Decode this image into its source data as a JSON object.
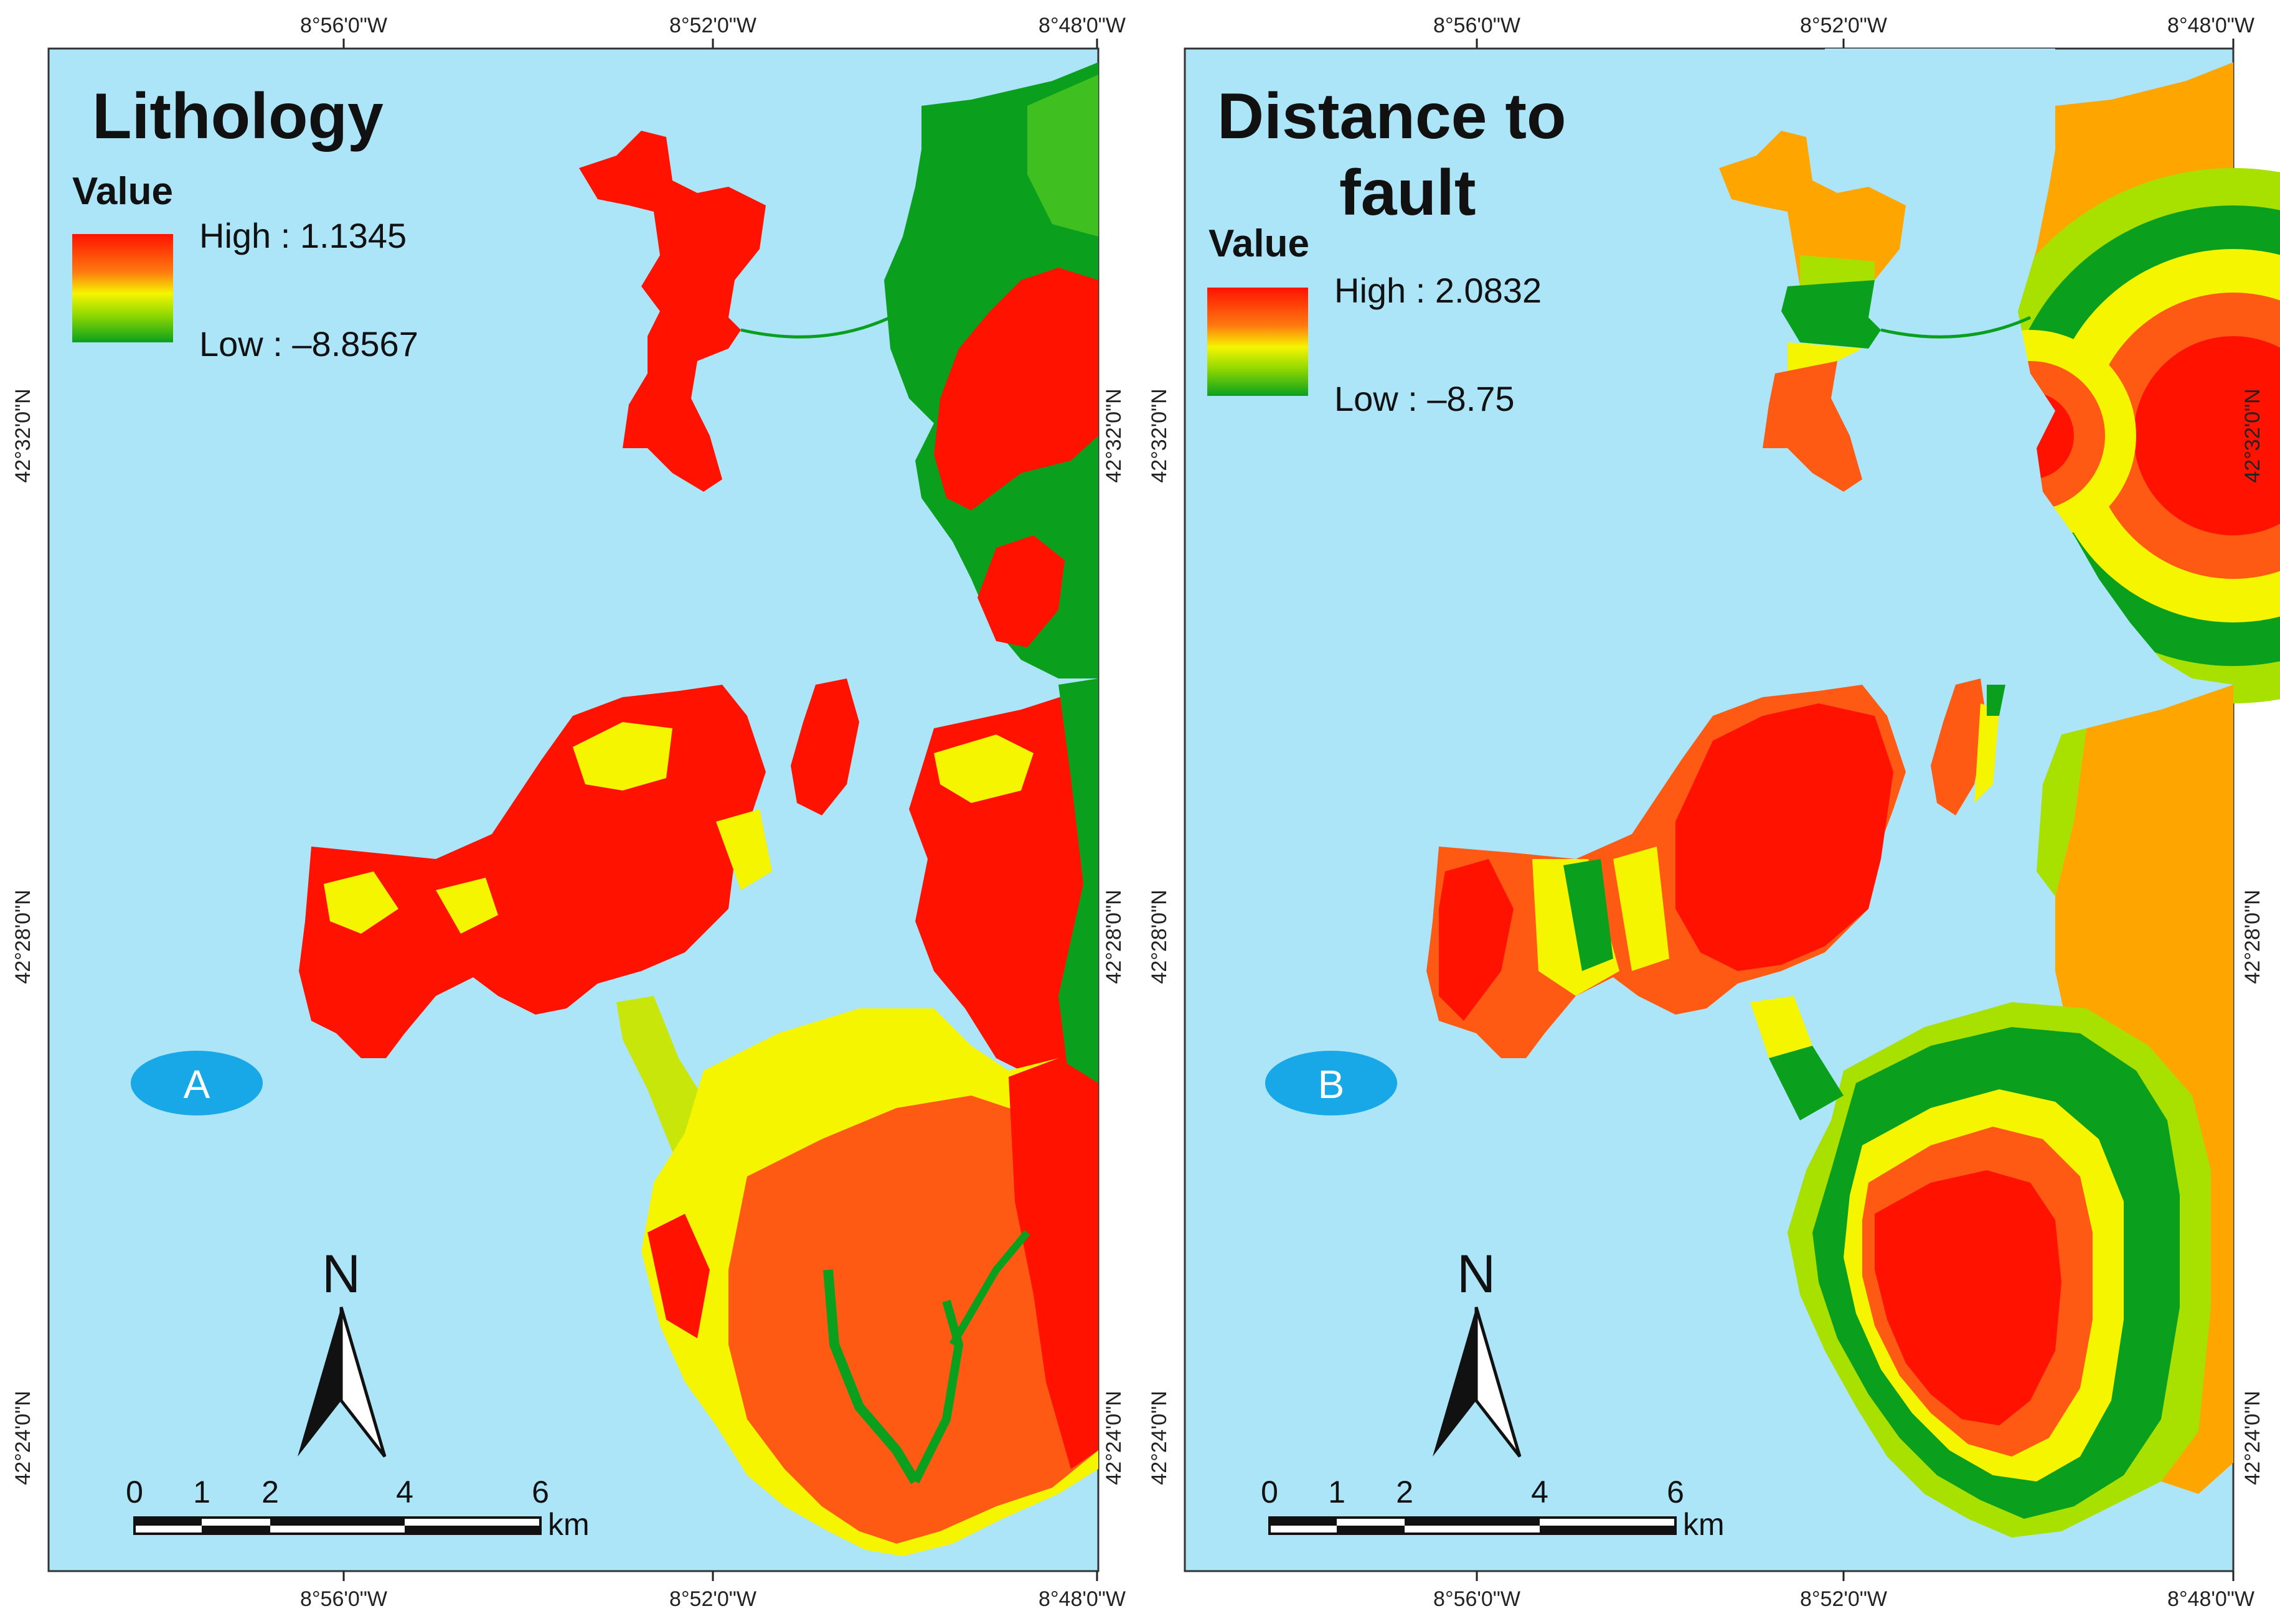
{
  "panels": [
    {
      "id": "A",
      "title_lines": [
        "Lithology"
      ],
      "legend_heading": "Value",
      "legend_high": "High : 1.1345",
      "legend_low": "Low : –8.8567",
      "badge": "A",
      "top_ticks": [
        "8°56'0\"W",
        "8°52'0\"W",
        "8°48'0\"W"
      ],
      "bottom_ticks": [
        "8°56'0\"W",
        "8°52'0\"W",
        "8°48'0\"W"
      ],
      "lat_ticks": [
        "42°32'0\"N",
        "42°28'0\"N",
        "42°24'0\"N"
      ]
    },
    {
      "id": "B",
      "title_lines": [
        "Distance to",
        "fault"
      ],
      "legend_heading": "Value",
      "legend_high": "High : 2.0832",
      "legend_low": "Low : –8.75",
      "badge": "B",
      "top_ticks": [
        "8°56'0\"W",
        "8°52'0\"W",
        "8°48'0\"W"
      ],
      "bottom_ticks": [
        "8°56'0\"W",
        "8°52'0\"W",
        "8°48'0\"W"
      ],
      "lat_ticks": [
        "42°32'0\"N",
        "42°28'0\"N",
        "42°24'0\"N"
      ]
    }
  ],
  "north_arrow_label": "N",
  "scale_bar": {
    "labels": [
      "0",
      "1",
      "2",
      "4",
      "6"
    ],
    "unit": "km"
  },
  "colors": {
    "sea": "#abe5f7",
    "high": "#ff1200",
    "mid_high": "#ff5a14",
    "mid": "#f5f500",
    "mid_low": "#a8e000",
    "low": "#0aa01e",
    "orange": "#ffa500",
    "badge": "#18a8e8"
  }
}
